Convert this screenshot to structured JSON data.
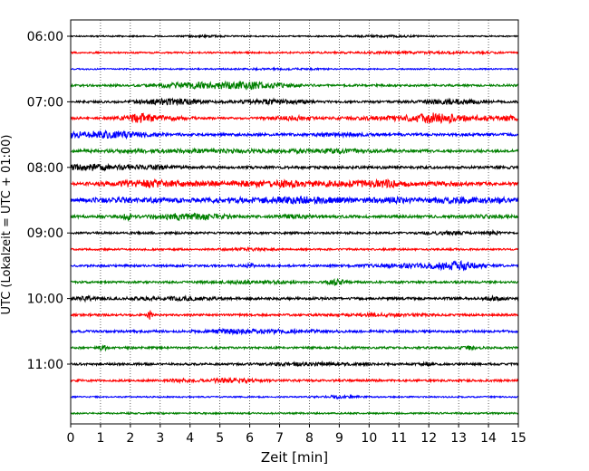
{
  "chart_data": {
    "type": "line",
    "title": "",
    "xlabel": "Zeit  [min]",
    "ylabel": "UTC (Lokalzeit = UTC + 01:00)",
    "xlim": [
      0,
      15
    ],
    "x_ticks": [
      0,
      1,
      2,
      3,
      4,
      5,
      6,
      7,
      8,
      9,
      10,
      11,
      12,
      13,
      14,
      15
    ],
    "y_ticks": [
      "06:00",
      "07:00",
      "08:00",
      "09:00",
      "10:00",
      "11:00"
    ],
    "grid": "vertical dotted",
    "rows_per_hour": 4,
    "minutes_per_row": 15,
    "colors": [
      "#000000",
      "#ff0000",
      "#0000ff",
      "#008000"
    ],
    "series": [
      {
        "start": "06:00",
        "baseline_amplitude": 0.5,
        "events": [
          [
            4.5,
            0.5,
            0.3
          ],
          [
            10.5,
            0.8,
            0.4
          ]
        ]
      },
      {
        "start": "06:15",
        "baseline_amplitude": 0.6,
        "events": [
          [
            11.0,
            1.5,
            0.3
          ],
          [
            12.8,
            1.0,
            0.3
          ]
        ]
      },
      {
        "start": "06:30",
        "baseline_amplitude": 0.5,
        "events": [
          [
            7.0,
            1.0,
            0.3
          ]
        ]
      },
      {
        "start": "06:45",
        "baseline_amplitude": 0.8,
        "events": [
          [
            3.8,
            0.7,
            1.4
          ],
          [
            5.0,
            0.8,
            1.0
          ],
          [
            6.2,
            0.8,
            1.8
          ]
        ]
      },
      {
        "start": "07:00",
        "baseline_amplitude": 0.8,
        "events": [
          [
            3.3,
            0.8,
            1.8
          ],
          [
            6.8,
            0.8,
            1.4
          ],
          [
            12.8,
            0.8,
            1.4
          ]
        ]
      },
      {
        "start": "07:15",
        "baseline_amplitude": 0.8,
        "events": [
          [
            2.3,
            0.3,
            2.2
          ],
          [
            2.8,
            0.8,
            1.3
          ],
          [
            7.4,
            0.5,
            1.2
          ],
          [
            11.6,
            1.5,
            1.4
          ],
          [
            12.3,
            0.5,
            2.2
          ],
          [
            14.6,
            0.8,
            1.1
          ]
        ]
      },
      {
        "start": "07:30",
        "baseline_amplitude": 1.0,
        "events": [
          [
            0.6,
            1.0,
            1.4
          ],
          [
            1.7,
            0.8,
            1.0
          ],
          [
            9.0,
            0.5,
            0.8
          ]
        ]
      },
      {
        "start": "07:45",
        "baseline_amplitude": 1.0,
        "events": [
          [
            4.5,
            2.5,
            0.7
          ],
          [
            9.0,
            1.0,
            0.8
          ]
        ]
      },
      {
        "start": "08:00",
        "baseline_amplitude": 1.0,
        "events": [
          [
            0.5,
            0.6,
            1.1
          ],
          [
            1.3,
            0.8,
            0.9
          ],
          [
            2.8,
            0.5,
            0.9
          ]
        ]
      },
      {
        "start": "08:15",
        "baseline_amplitude": 1.0,
        "events": [
          [
            2.5,
            1.0,
            1.9
          ],
          [
            5.5,
            1.5,
            0.9
          ],
          [
            8.0,
            1.5,
            1.5
          ],
          [
            10.4,
            0.5,
            1.2
          ],
          [
            12.0,
            1.5,
            0.8
          ]
        ]
      },
      {
        "start": "08:30",
        "baseline_amplitude": 1.0,
        "events": [
          [
            2.0,
            1.2,
            1.2
          ],
          [
            5.5,
            1.0,
            1.1
          ],
          [
            7.9,
            1.0,
            2.0
          ],
          [
            10.6,
            0.8,
            1.4
          ],
          [
            12.9,
            0.8,
            1.6
          ],
          [
            14.3,
            0.4,
            1.1
          ]
        ]
      },
      {
        "start": "08:45",
        "baseline_amplitude": 1.0,
        "events": [
          [
            1.9,
            0.1,
            2.0
          ],
          [
            3.5,
            0.6,
            1.6
          ],
          [
            4.6,
            0.6,
            1.3
          ],
          [
            7.6,
            0.5,
            0.9
          ],
          [
            14.0,
            0.6,
            0.7
          ]
        ]
      },
      {
        "start": "09:00",
        "baseline_amplitude": 0.8,
        "events": [
          [
            12.5,
            0.5,
            0.9
          ],
          [
            14.2,
            0.2,
            1.1
          ]
        ]
      },
      {
        "start": "09:15",
        "baseline_amplitude": 0.7,
        "events": [
          [
            5.8,
            0.5,
            0.6
          ]
        ]
      },
      {
        "start": "09:30",
        "baseline_amplitude": 0.8,
        "events": [
          [
            6.0,
            0.1,
            1.6
          ],
          [
            11.8,
            1.2,
            1.2
          ],
          [
            13.0,
            0.5,
            2.2
          ]
        ]
      },
      {
        "start": "09:45",
        "baseline_amplitude": 0.8,
        "events": [
          [
            8.9,
            0.2,
            2.0
          ],
          [
            6.2,
            0.8,
            0.8
          ]
        ]
      },
      {
        "start": "10:00",
        "baseline_amplitude": 0.9,
        "events": [
          [
            0.5,
            0.2,
            1.1
          ],
          [
            3.5,
            1.0,
            0.8
          ],
          [
            14.2,
            0.2,
            1.0
          ]
        ]
      },
      {
        "start": "10:15",
        "baseline_amplitude": 0.8,
        "events": [
          [
            2.65,
            0.04,
            8.0
          ],
          [
            10.5,
            1.0,
            0.6
          ]
        ]
      },
      {
        "start": "10:30",
        "baseline_amplitude": 0.9,
        "events": [
          [
            5.2,
            0.5,
            1.0
          ],
          [
            6.8,
            1.0,
            0.9
          ]
        ]
      },
      {
        "start": "10:45",
        "baseline_amplitude": 0.8,
        "events": [
          [
            1.1,
            0.1,
            2.0
          ],
          [
            13.4,
            0.2,
            1.1
          ]
        ]
      },
      {
        "start": "11:00",
        "baseline_amplitude": 0.8,
        "events": [
          [
            8.0,
            1.0,
            0.8
          ],
          [
            11.9,
            0.1,
            1.1
          ]
        ]
      },
      {
        "start": "11:15",
        "baseline_amplitude": 0.8,
        "events": [
          [
            5.4,
            0.6,
            1.2
          ],
          [
            3.8,
            0.3,
            0.8
          ]
        ]
      },
      {
        "start": "11:30",
        "baseline_amplitude": 0.5,
        "events": [
          [
            9.0,
            0.5,
            0.8
          ]
        ]
      },
      {
        "start": "11:45",
        "baseline_amplitude": 0.6,
        "events": []
      }
    ]
  }
}
